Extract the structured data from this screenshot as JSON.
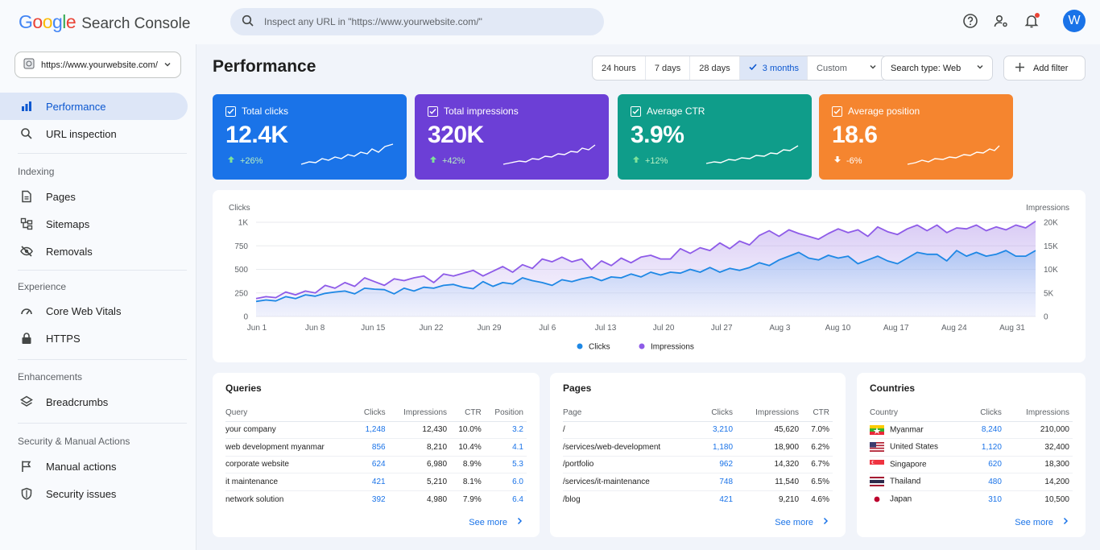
{
  "app": {
    "logo_google": "Google",
    "logo_product": "Search Console",
    "search_placeholder": "Inspect any URL in \"https://www.yourwebsite.com/\"",
    "avatar_letter": "W"
  },
  "sidebar": {
    "property": "https://www.yourwebsite.com/",
    "items_top": [
      {
        "label": "Performance",
        "icon": "bar-chart-icon",
        "active": true
      },
      {
        "label": "URL inspection",
        "icon": "search-icon"
      }
    ],
    "sections": [
      {
        "title": "Indexing",
        "items": [
          {
            "label": "Pages",
            "icon": "page-icon"
          },
          {
            "label": "Sitemaps",
            "icon": "sitemap-icon"
          },
          {
            "label": "Removals",
            "icon": "eye-off-icon"
          }
        ]
      },
      {
        "title": "Experience",
        "items": [
          {
            "label": "Core Web Vitals",
            "icon": "gauge-icon"
          },
          {
            "label": "HTTPS",
            "icon": "lock-icon"
          }
        ]
      },
      {
        "title": "Enhancements",
        "items": [
          {
            "label": "Breadcrumbs",
            "icon": "layers-icon"
          }
        ]
      },
      {
        "title": "Security & Manual Actions",
        "items": [
          {
            "label": "Manual actions",
            "icon": "flag-icon"
          },
          {
            "label": "Security issues",
            "icon": "shield-icon"
          }
        ]
      }
    ]
  },
  "main": {
    "title": "Performance",
    "ranges": [
      "24 hours",
      "7 days",
      "28 days",
      "3 months"
    ],
    "range_active": "3 months",
    "custom_label": "Custom",
    "search_type": "Search type: Web",
    "add_filter": "Add filter"
  },
  "metrics": [
    {
      "label": "Total clicks",
      "value": "12.4K",
      "change": "+26%",
      "direction": "up",
      "color": "#1a73e8"
    },
    {
      "label": "Total impressions",
      "value": "320K",
      "change": "+42%",
      "direction": "up",
      "color": "#6c3fd6"
    },
    {
      "label": "Average CTR",
      "value": "3.9%",
      "change": "+12%",
      "direction": "up",
      "color": "#0f9d8a"
    },
    {
      "label": "Average position",
      "value": "18.6",
      "change": "-6%",
      "direction": "down",
      "color": "#f5852f"
    }
  ],
  "chart_data": {
    "type": "line",
    "left_axis_label": "Clicks",
    "right_axis_label": "Impressions",
    "left_ticks": [
      "0",
      "250",
      "500",
      "750",
      "1K"
    ],
    "right_ticks": [
      "0",
      "5K",
      "10K",
      "15K",
      "20K"
    ],
    "left_ylim": [
      0,
      1000
    ],
    "right_ylim": [
      0,
      20000
    ],
    "x_tick_labels": [
      "Jun 1",
      "Jun 8",
      "Jun 15",
      "Jun 22",
      "Jun 29",
      "Jul 6",
      "Jul 13",
      "Jul 20",
      "Jul 27",
      "Aug 3",
      "Aug 10",
      "Aug 17",
      "Aug 24",
      "Aug 31"
    ],
    "legend": [
      "Clicks",
      "Impressions"
    ],
    "series": [
      {
        "name": "Clicks",
        "axis": "left",
        "color": "#1e88e5",
        "values": [
          160,
          175,
          165,
          210,
          190,
          230,
          215,
          245,
          260,
          270,
          240,
          300,
          290,
          285,
          240,
          300,
          270,
          310,
          300,
          330,
          340,
          310,
          295,
          370,
          320,
          360,
          345,
          410,
          380,
          360,
          330,
          390,
          370,
          400,
          420,
          380,
          420,
          410,
          450,
          420,
          470,
          440,
          470,
          460,
          500,
          470,
          520,
          470,
          510,
          490,
          520,
          570,
          540,
          600,
          640,
          680,
          620,
          600,
          650,
          620,
          640,
          560,
          600,
          640,
          590,
          560,
          620,
          680,
          660,
          660,
          590,
          700,
          640,
          680,
          640,
          660,
          700,
          640,
          640,
          700
        ]
      },
      {
        "name": "Impressions",
        "axis": "right",
        "color": "#8e5be8",
        "values": [
          3800,
          4200,
          4000,
          5200,
          4600,
          5400,
          5000,
          6600,
          6000,
          7200,
          6400,
          8200,
          7400,
          6600,
          8000,
          7600,
          8200,
          8600,
          7200,
          9000,
          8600,
          9200,
          9800,
          8600,
          9600,
          10600,
          9400,
          11000,
          10200,
          12200,
          11600,
          12600,
          11600,
          12200,
          10000,
          11800,
          10800,
          12400,
          11400,
          12600,
          13000,
          12200,
          12200,
          14400,
          13400,
          14600,
          14000,
          15600,
          14400,
          16000,
          15200,
          17200,
          18200,
          17000,
          18400,
          17600,
          17000,
          16400,
          17600,
          18600,
          17800,
          18400,
          17000,
          19000,
          18000,
          17400,
          18600,
          19400,
          18200,
          19400,
          17800,
          18800,
          18600,
          19400,
          18200,
          19000,
          18400,
          19400,
          18800,
          20200
        ]
      }
    ]
  },
  "queries": {
    "title": "Queries",
    "columns": [
      "Query",
      "Clicks",
      "Impressions",
      "CTR",
      "Position"
    ],
    "rows": [
      [
        "your company",
        "1,248",
        "12,430",
        "10.0%",
        "3.2"
      ],
      [
        "web development myanmar",
        "856",
        "8,210",
        "10.4%",
        "4.1"
      ],
      [
        "corporate website",
        "624",
        "6,980",
        "8.9%",
        "5.3"
      ],
      [
        "it maintenance",
        "421",
        "5,210",
        "8.1%",
        "6.0"
      ],
      [
        "network solution",
        "392",
        "4,980",
        "7.9%",
        "6.4"
      ]
    ],
    "see_more": "See more"
  },
  "pages": {
    "title": "Pages",
    "columns": [
      "Page",
      "Clicks",
      "Impressions",
      "CTR"
    ],
    "rows": [
      [
        "/",
        "3,210",
        "45,620",
        "7.0%"
      ],
      [
        "/services/web-development",
        "1,180",
        "18,900",
        "6.2%"
      ],
      [
        "/portfolio",
        "962",
        "14,320",
        "6.7%"
      ],
      [
        "/services/it-maintenance",
        "748",
        "11,540",
        "6.5%"
      ],
      [
        "/blog",
        "421",
        "9,210",
        "4.6%"
      ]
    ],
    "see_more": "See more"
  },
  "countries": {
    "title": "Countries",
    "columns": [
      "Country",
      "Clicks",
      "Impressions"
    ],
    "rows": [
      {
        "flag": "myanmar-flag-icon",
        "name": "Myanmar",
        "clicks": "8,240",
        "impressions": "210,000"
      },
      {
        "flag": "usa-flag-icon",
        "name": "United States",
        "clicks": "1,120",
        "impressions": "32,400"
      },
      {
        "flag": "singapore-flag-icon",
        "name": "Singapore",
        "clicks": "620",
        "impressions": "18,300"
      },
      {
        "flag": "thailand-flag-icon",
        "name": "Thailand",
        "clicks": "480",
        "impressions": "14,200"
      },
      {
        "flag": "japan-flag-icon",
        "name": "Japan",
        "clicks": "310",
        "impressions": "10,500"
      }
    ],
    "see_more": "See more"
  }
}
